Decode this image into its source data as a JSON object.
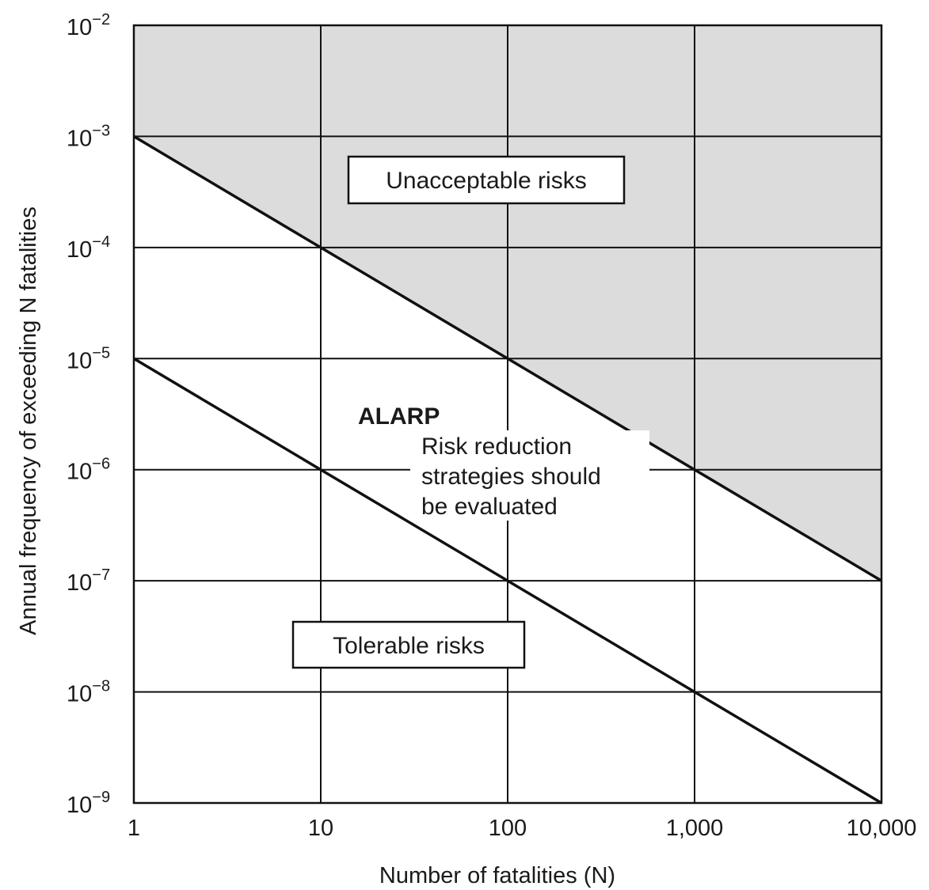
{
  "chart_data": {
    "type": "line",
    "title": "",
    "xlabel": "Number of fatalities (N)",
    "ylabel": "Annual frequency of exceeding N fatalities",
    "xscale": "log",
    "yscale": "log",
    "xlim": [
      1,
      10000
    ],
    "ylim": [
      1e-09,
      0.01
    ],
    "grid": true,
    "x_ticks": [
      {
        "value": 1,
        "label": "1"
      },
      {
        "value": 10,
        "label": "10"
      },
      {
        "value": 100,
        "label": "100"
      },
      {
        "value": 1000,
        "label": "1,000"
      },
      {
        "value": 10000,
        "label": "10,000"
      }
    ],
    "y_ticks": [
      {
        "value": 1e-09,
        "base": "10",
        "exp": "−9"
      },
      {
        "value": 1e-08,
        "base": "10",
        "exp": "−8"
      },
      {
        "value": 1e-07,
        "base": "10",
        "exp": "−7"
      },
      {
        "value": 1e-06,
        "base": "10",
        "exp": "−6"
      },
      {
        "value": 1e-05,
        "base": "10",
        "exp": "−5"
      },
      {
        "value": 0.0001,
        "base": "10",
        "exp": "−4"
      },
      {
        "value": 0.001,
        "base": "10",
        "exp": "−3"
      },
      {
        "value": 0.01,
        "base": "10",
        "exp": "−2"
      }
    ],
    "series": [
      {
        "x": [
          1,
          10,
          100,
          1000,
          10000
        ],
        "y": [
          0.001,
          0.0001,
          1e-05,
          1e-06,
          1e-07
        ]
      },
      {
        "x": [
          1,
          10,
          100,
          1000,
          10000
        ],
        "y": [
          1e-05,
          1e-06,
          1e-07,
          1e-08,
          1e-09
        ]
      }
    ],
    "regions": {
      "unacceptable": {
        "label": "Unacceptable risks",
        "fill": "#dcdcdc"
      },
      "alarp": {
        "title": "ALARP",
        "lines": [
          "Risk reduction",
          "strategies should",
          "be evaluated"
        ]
      },
      "tolerable": {
        "label": "Tolerable risks"
      }
    },
    "colors": {
      "line": "#111111",
      "grid": "#111111",
      "shade": "#dcdcdc",
      "background": "#ffffff"
    }
  }
}
